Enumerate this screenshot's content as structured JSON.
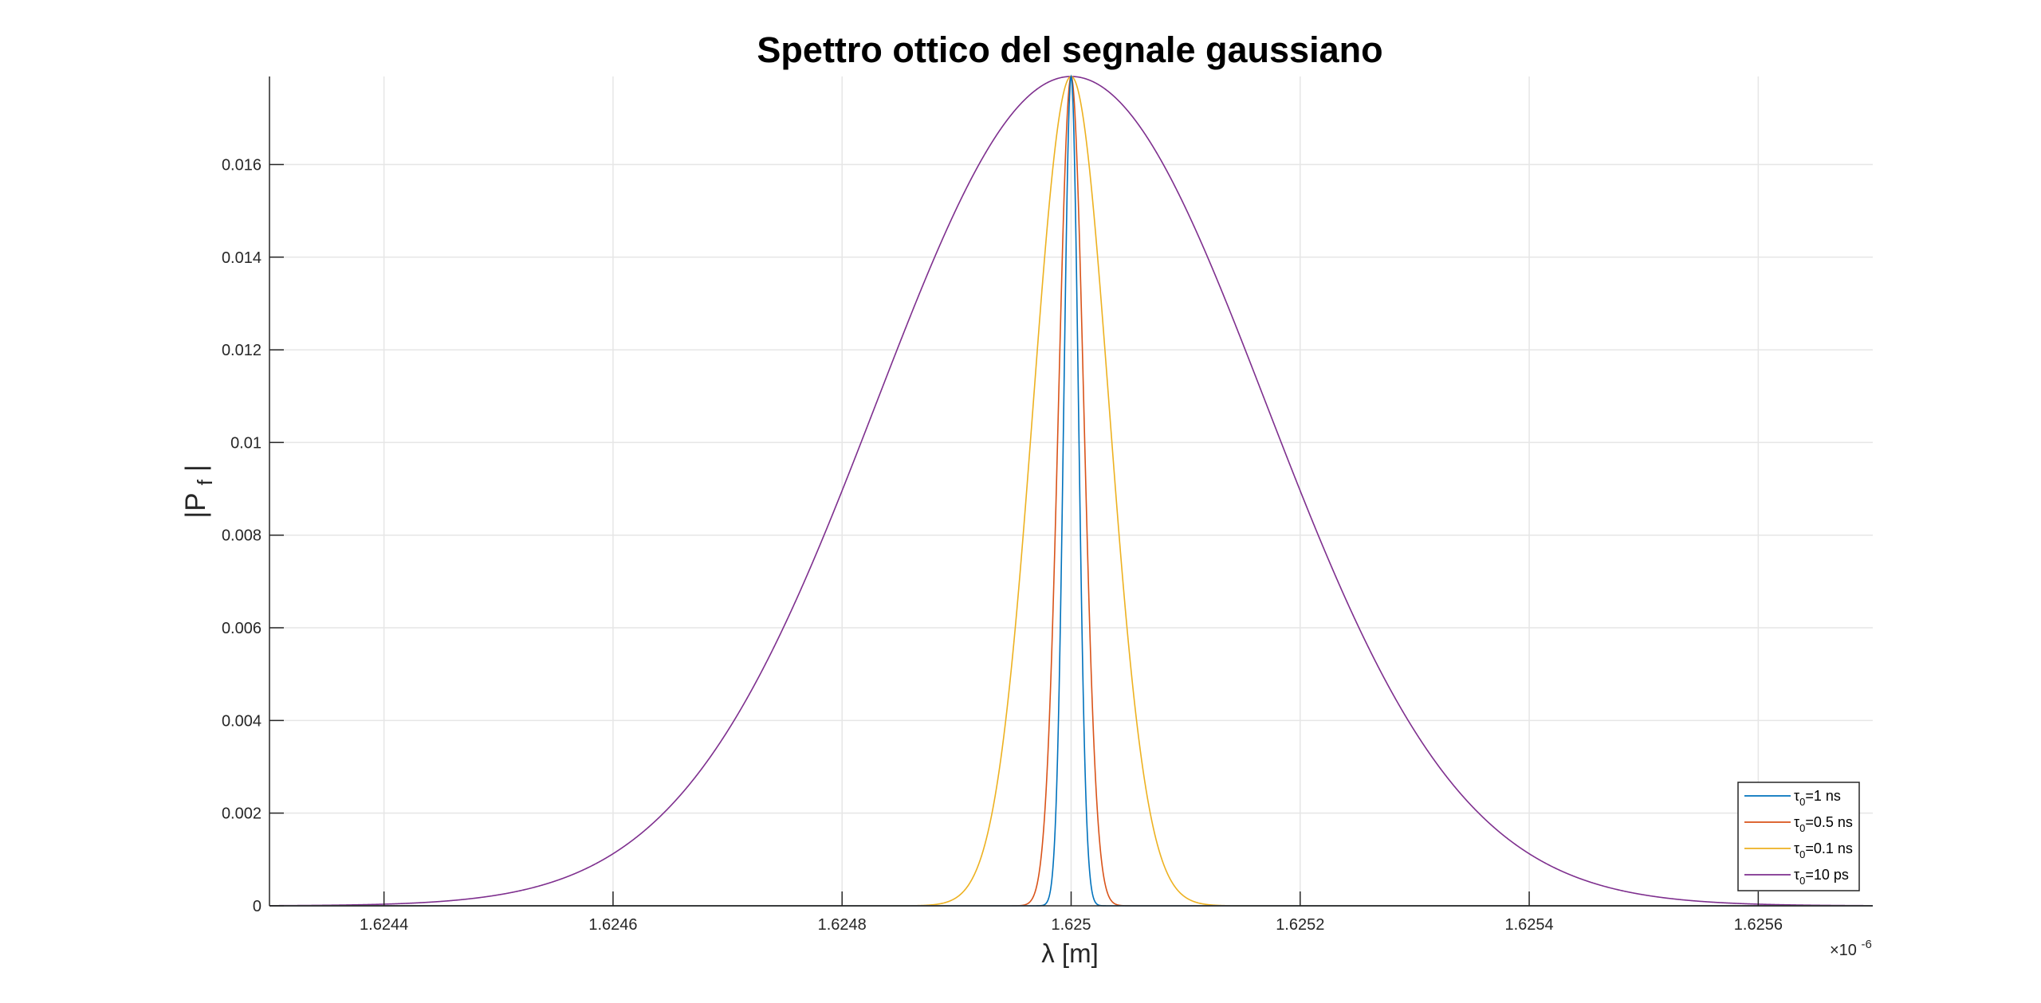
{
  "chart_data": {
    "type": "line",
    "title": "Spettro ottico del segnale gaussiano",
    "xlabel": "λ [m]",
    "ylabel": {
      "main": "|P",
      "sub": "f",
      "close": "|"
    },
    "x_exponent": {
      "base": "×10",
      "power": "-6"
    },
    "xlim": [
      1.6243,
      1.6257
    ],
    "ylim": [
      0,
      0.0179
    ],
    "x_ticks": [
      "1.6244",
      "1.6246",
      "1.6248",
      "1.625",
      "1.6252",
      "1.6254",
      "1.6256"
    ],
    "y_ticks": [
      "0",
      "0.002",
      "0.004",
      "0.006",
      "0.008",
      "0.01",
      "0.012",
      "0.014",
      "0.016"
    ],
    "grid": true,
    "legend_position": "bottom-right",
    "series": [
      {
        "name": "1 ns",
        "label": {
          "tau": "τ",
          "sub": "0",
          "rest": "=1 ns"
        },
        "color": "#0072BD",
        "center": 1.625,
        "peak": 0.0179,
        "sigma": 6.4e-06
      },
      {
        "name": "0.5 ns",
        "label": {
          "tau": "τ",
          "sub": "0",
          "rest": "=0.5 ns"
        },
        "color": "#D95319",
        "center": 1.625,
        "peak": 0.0179,
        "sigma": 1.1e-05
      },
      {
        "name": "0.1 ns",
        "label": {
          "tau": "τ",
          "sub": "0",
          "rest": "=0.1 ns"
        },
        "color": "#EDB120",
        "center": 1.625,
        "peak": 0.0179,
        "sigma": 3.3e-05
      },
      {
        "name": "10 ps",
        "label": {
          "tau": "τ",
          "sub": "0",
          "rest": "=10 ps"
        },
        "color": "#7E2F8E",
        "center": 1.625,
        "peak": 0.0179,
        "sigma": 0.00017
      }
    ]
  }
}
